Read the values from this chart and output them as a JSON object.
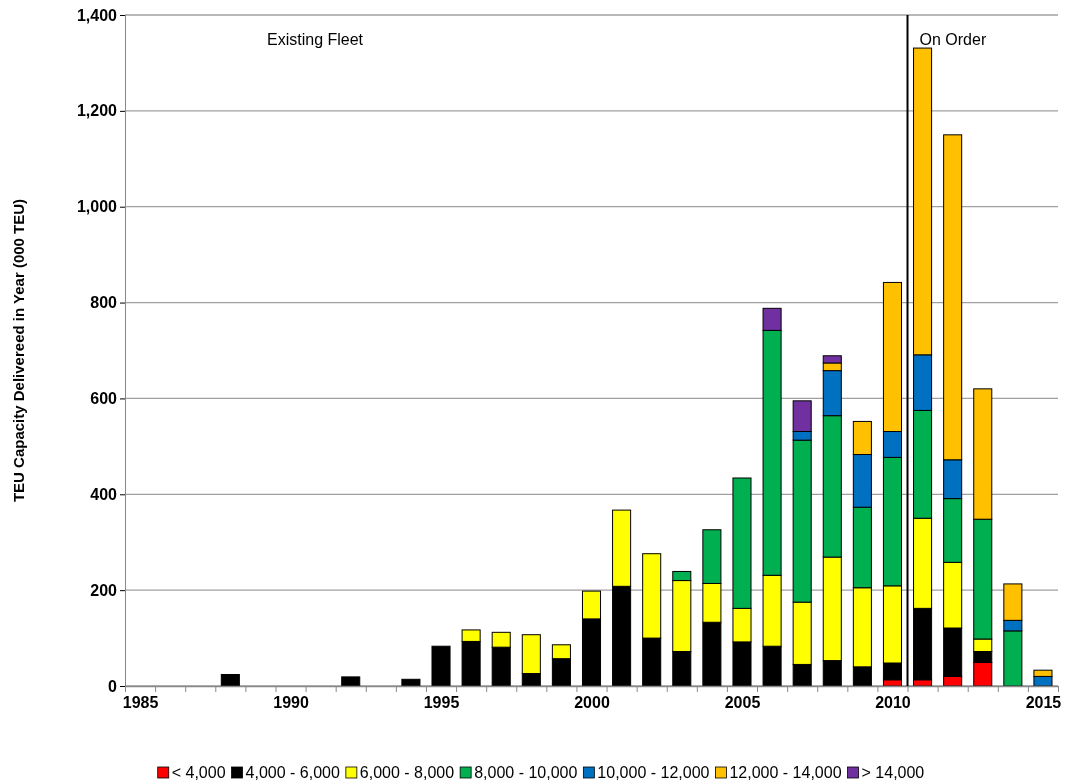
{
  "chart_data": {
    "type": "bar",
    "stacked": true,
    "ylabel": "TEU Capacity Delivereed in Year (000 TEU)",
    "x": [
      1988,
      1989,
      1990,
      1991,
      1992,
      1993,
      1994,
      1995,
      1996,
      1997,
      1998,
      1999,
      2000,
      2001,
      2002,
      2003,
      2004,
      2005,
      2006,
      2007,
      2008,
      2009,
      2010,
      2011,
      2012,
      2013,
      2014,
      2015
    ],
    "xlim": [
      1984.5,
      2015.5
    ],
    "xticks": [
      {
        "value": 1984.5,
        "label": null
      },
      {
        "value": 1985.5,
        "label": null
      },
      {
        "value": 1986.5,
        "label": null
      },
      {
        "value": 1987.5,
        "label": null
      },
      {
        "value": 1988.5,
        "label": null
      },
      {
        "value": 1989.5,
        "label": null
      },
      {
        "value": 1990.5,
        "label": null
      },
      {
        "value": 1991.5,
        "label": null
      },
      {
        "value": 1992.5,
        "label": null
      },
      {
        "value": 1993.5,
        "label": null
      },
      {
        "value": 1994.5,
        "label": null
      },
      {
        "value": 1995.5,
        "label": null
      },
      {
        "value": 1996.5,
        "label": null
      },
      {
        "value": 1997.5,
        "label": null
      },
      {
        "value": 1998.5,
        "label": null
      },
      {
        "value": 1999.5,
        "label": null
      },
      {
        "value": 2000.5,
        "label": null
      },
      {
        "value": 2001.5,
        "label": null
      },
      {
        "value": 2002.5,
        "label": null
      },
      {
        "value": 2003.5,
        "label": null
      },
      {
        "value": 2004.5,
        "label": null
      },
      {
        "value": 2005.5,
        "label": null
      },
      {
        "value": 2006.5,
        "label": null
      },
      {
        "value": 2007.5,
        "label": null
      },
      {
        "value": 2008.5,
        "label": null
      },
      {
        "value": 2009.5,
        "label": null
      },
      {
        "value": 2010.5,
        "label": null
      },
      {
        "value": 2011.5,
        "label": null
      },
      {
        "value": 2012.5,
        "label": null
      },
      {
        "value": 2013.5,
        "label": null
      },
      {
        "value": 2014.5,
        "label": null
      },
      {
        "value": 2015.5,
        "label": null
      },
      1985,
      1990,
      1995,
      2000,
      2005,
      2010,
      2015
    ],
    "ylim": [
      0,
      1400
    ],
    "yticks": [
      0,
      200,
      400,
      600,
      800,
      {
        "value": 1000,
        "label": "1,000"
      },
      {
        "value": 1200,
        "label": "1,200"
      },
      {
        "value": 1400,
        "label": "1,400"
      }
    ],
    "grid": "y",
    "legend": "bottom",
    "annotations": [
      "Existing Fleet"
    ],
    "ref_lines": [
      {
        "axis": "x",
        "value": 2010.5,
        "label": "On Order",
        "color": "#000000"
      }
    ],
    "series": [
      {
        "name": "< 4,000",
        "color": "#ff0000",
        "values": [
          null,
          null,
          null,
          null,
          null,
          null,
          null,
          null,
          null,
          null,
          null,
          null,
          null,
          null,
          null,
          null,
          null,
          null,
          null,
          null,
          null,
          null,
          13,
          13,
          20,
          49,
          null,
          null
        ]
      },
      {
        "name": "4,000 - 6,000",
        "color": "#000000",
        "values": [
          24,
          null,
          null,
          null,
          19,
          null,
          14,
          83,
          93,
          81,
          26,
          57,
          140,
          208,
          100,
          72,
          133,
          92,
          83,
          45,
          53,
          40,
          35,
          149,
          101,
          23,
          null,
          null
        ]
      },
      {
        "name": "6,000 - 8,000",
        "color": "#ffff00",
        "values": [
          null,
          null,
          null,
          null,
          null,
          null,
          null,
          null,
          24,
          31,
          81,
          29,
          58,
          159,
          176,
          148,
          81,
          70,
          148,
          130,
          216,
          165,
          161,
          188,
          137,
          26,
          null,
          null
        ]
      },
      {
        "name": "8,000 - 10,000",
        "color": "#00b050",
        "values": [
          null,
          null,
          null,
          null,
          null,
          null,
          null,
          null,
          null,
          null,
          null,
          null,
          null,
          null,
          null,
          19,
          112,
          272,
          511,
          338,
          295,
          168,
          268,
          225,
          133,
          250,
          115,
          null
        ]
      },
      {
        "name": "10,000 - 12,000",
        "color": "#0070c0",
        "values": [
          null,
          null,
          null,
          null,
          null,
          null,
          null,
          null,
          null,
          null,
          null,
          null,
          null,
          null,
          null,
          null,
          null,
          null,
          null,
          18,
          94,
          110,
          54,
          116,
          81,
          null,
          22,
          20
        ]
      },
      {
        "name": "12,000 - 14,000",
        "color": "#ffc000",
        "values": [
          null,
          null,
          null,
          null,
          null,
          null,
          null,
          null,
          null,
          null,
          null,
          null,
          null,
          null,
          null,
          null,
          null,
          null,
          null,
          null,
          16,
          69,
          311,
          640,
          678,
          272,
          76,
          13
        ]
      },
      {
        "name": "> 14,000",
        "color": "#7030a0",
        "values": [
          null,
          null,
          null,
          null,
          null,
          null,
          null,
          null,
          null,
          null,
          null,
          null,
          null,
          null,
          null,
          null,
          null,
          null,
          46,
          64,
          15,
          null,
          null,
          null,
          null,
          null,
          null,
          null
        ]
      }
    ]
  }
}
